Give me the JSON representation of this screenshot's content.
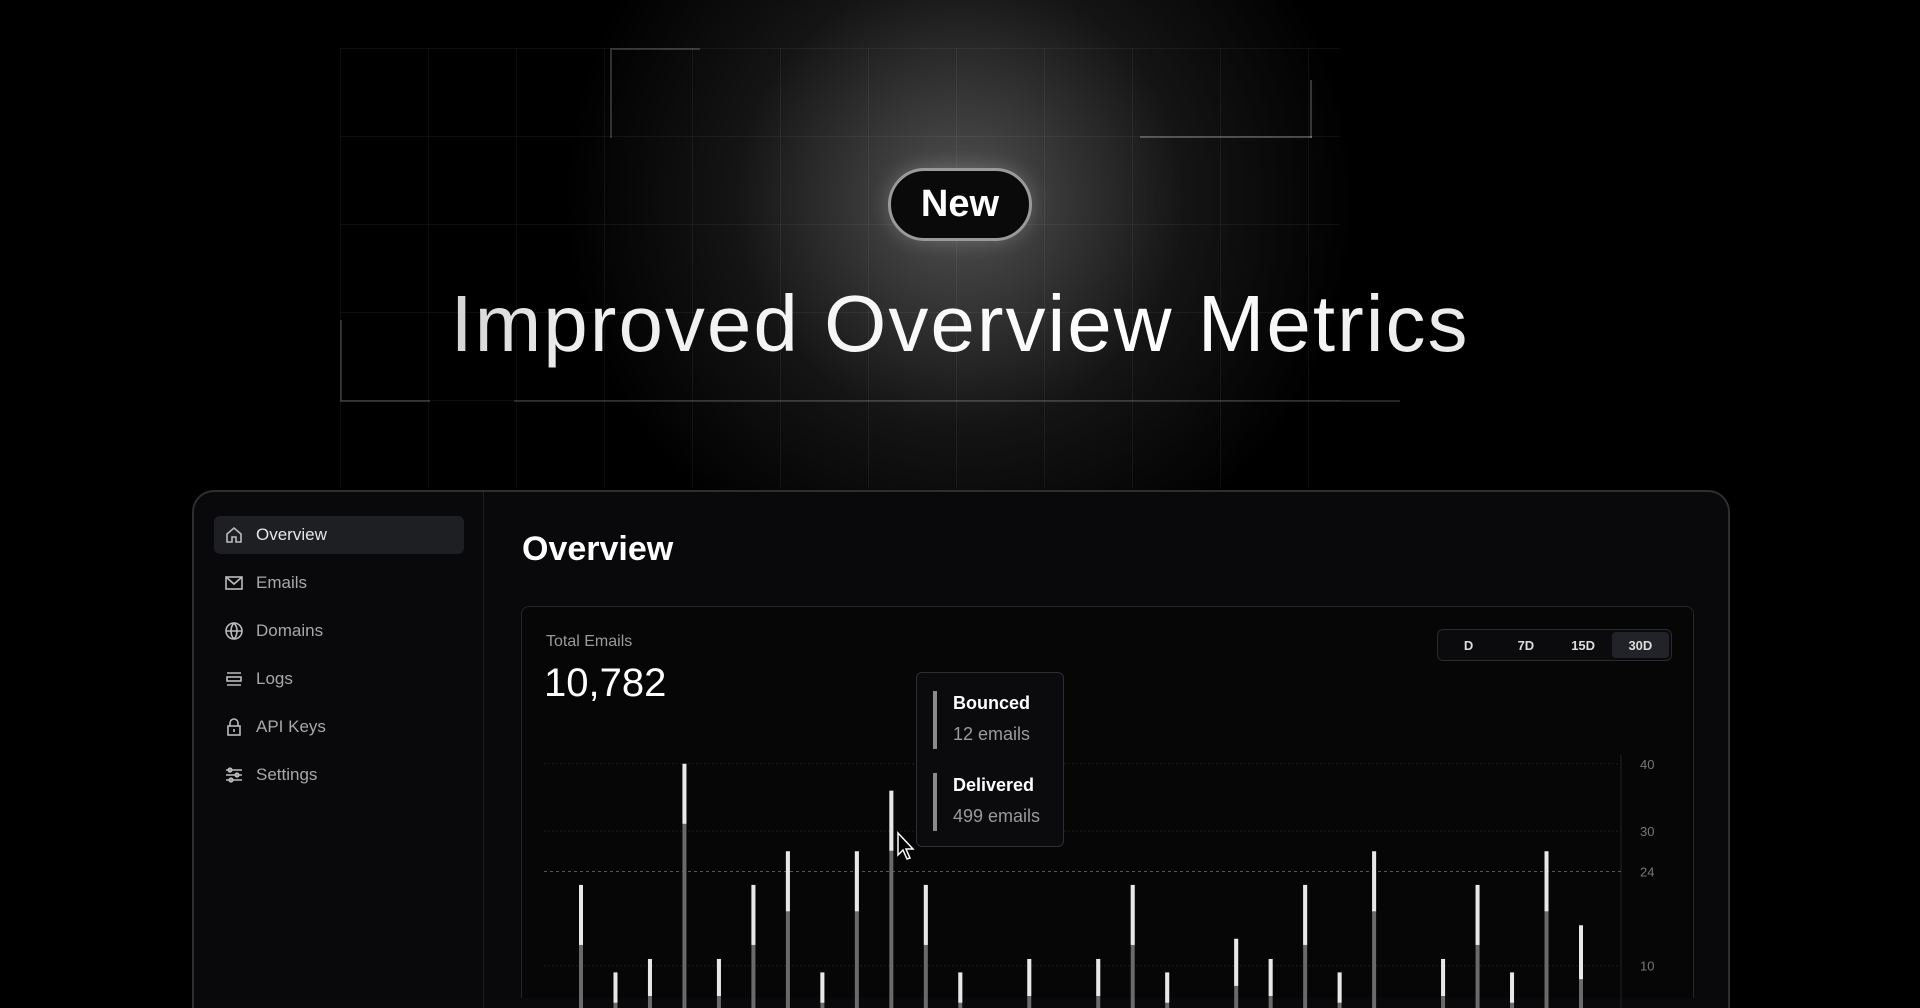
{
  "hero": {
    "badge": "New",
    "headline": "Improved Overview Metrics"
  },
  "sidebar": {
    "items": [
      {
        "label": "Overview",
        "icon": "home-icon"
      },
      {
        "label": "Emails",
        "icon": "mail-icon"
      },
      {
        "label": "Domains",
        "icon": "globe-icon"
      },
      {
        "label": "Logs",
        "icon": "list-icon"
      },
      {
        "label": "API Keys",
        "icon": "lock-icon"
      },
      {
        "label": "Settings",
        "icon": "sliders-icon"
      }
    ]
  },
  "main": {
    "title": "Overview",
    "card": {
      "label": "Total Emails",
      "total": "10,782",
      "ranges": [
        "D",
        "7D",
        "15D",
        "30D"
      ],
      "selected_range": "30D"
    }
  },
  "tooltip": {
    "items": [
      {
        "name": "Bounced",
        "value": "12 emails"
      },
      {
        "name": "Delivered",
        "value": "499 emails"
      }
    ]
  },
  "chart_data": {
    "type": "bar",
    "y_ticks": [
      10,
      24,
      30,
      40
    ],
    "reference_line": 24,
    "ylim": [
      0,
      40
    ],
    "values": [
      22,
      9,
      11,
      40,
      11,
      22,
      27,
      9,
      27,
      36,
      22,
      9,
      0,
      11,
      0,
      11,
      22,
      9,
      0,
      14,
      11,
      22,
      9,
      27,
      0,
      11,
      22,
      9,
      27,
      16
    ]
  },
  "colors": {
    "background": "#000000",
    "panel": "#09090b",
    "accent": "#ffffff"
  }
}
